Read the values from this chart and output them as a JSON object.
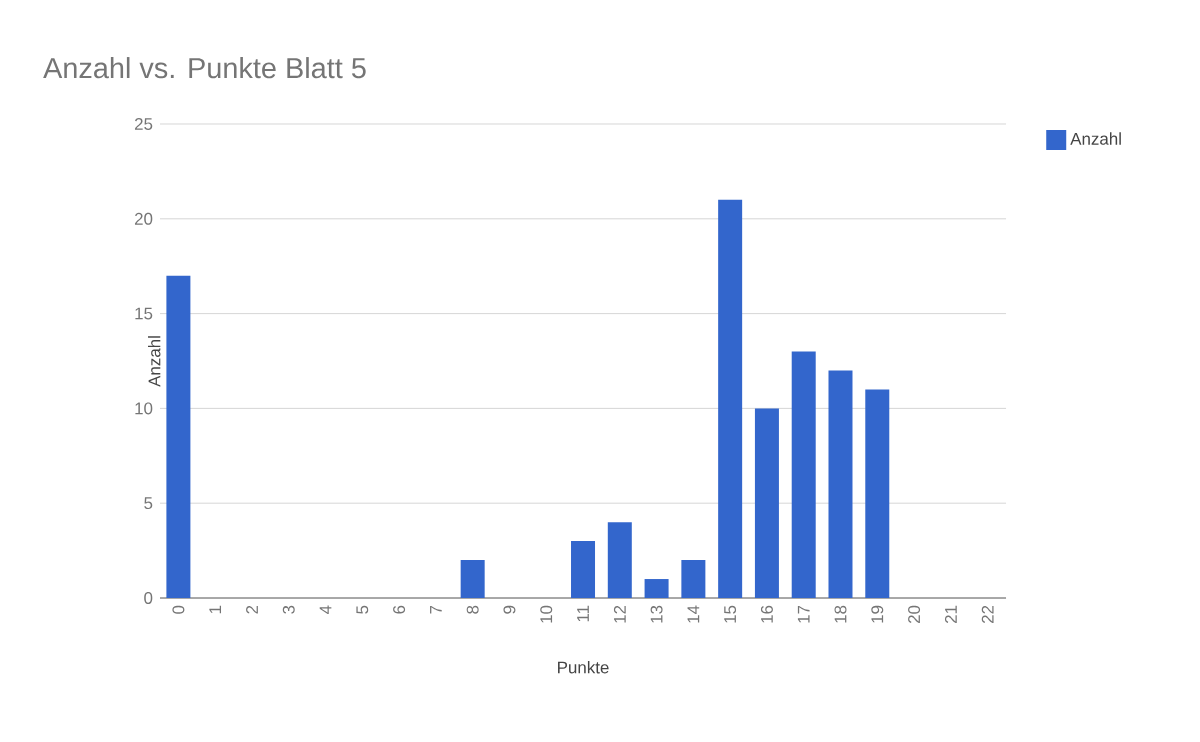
{
  "chart_data": {
    "type": "bar",
    "title": "Anzahl vs. Punkte Blatt 5",
    "xlabel": "Punkte",
    "ylabel": "Anzahl",
    "categories": [
      "0",
      "1",
      "2",
      "3",
      "4",
      "5",
      "6",
      "7",
      "8",
      "9",
      "10",
      "11",
      "12",
      "13",
      "14",
      "15",
      "16",
      "17",
      "18",
      "19",
      "20",
      "21",
      "22"
    ],
    "series": [
      {
        "name": "Anzahl",
        "color": "#3366cc",
        "values": [
          17,
          0,
          0,
          0,
          0,
          0,
          0,
          0,
          2,
          0,
          0,
          3,
          4,
          1,
          2,
          21,
          10,
          13,
          12,
          11,
          0,
          0,
          0
        ]
      }
    ],
    "ylim": [
      0,
      25
    ],
    "yticks": [
      0,
      5,
      10,
      15,
      20,
      25
    ],
    "grid": "y",
    "legend": "top right"
  }
}
